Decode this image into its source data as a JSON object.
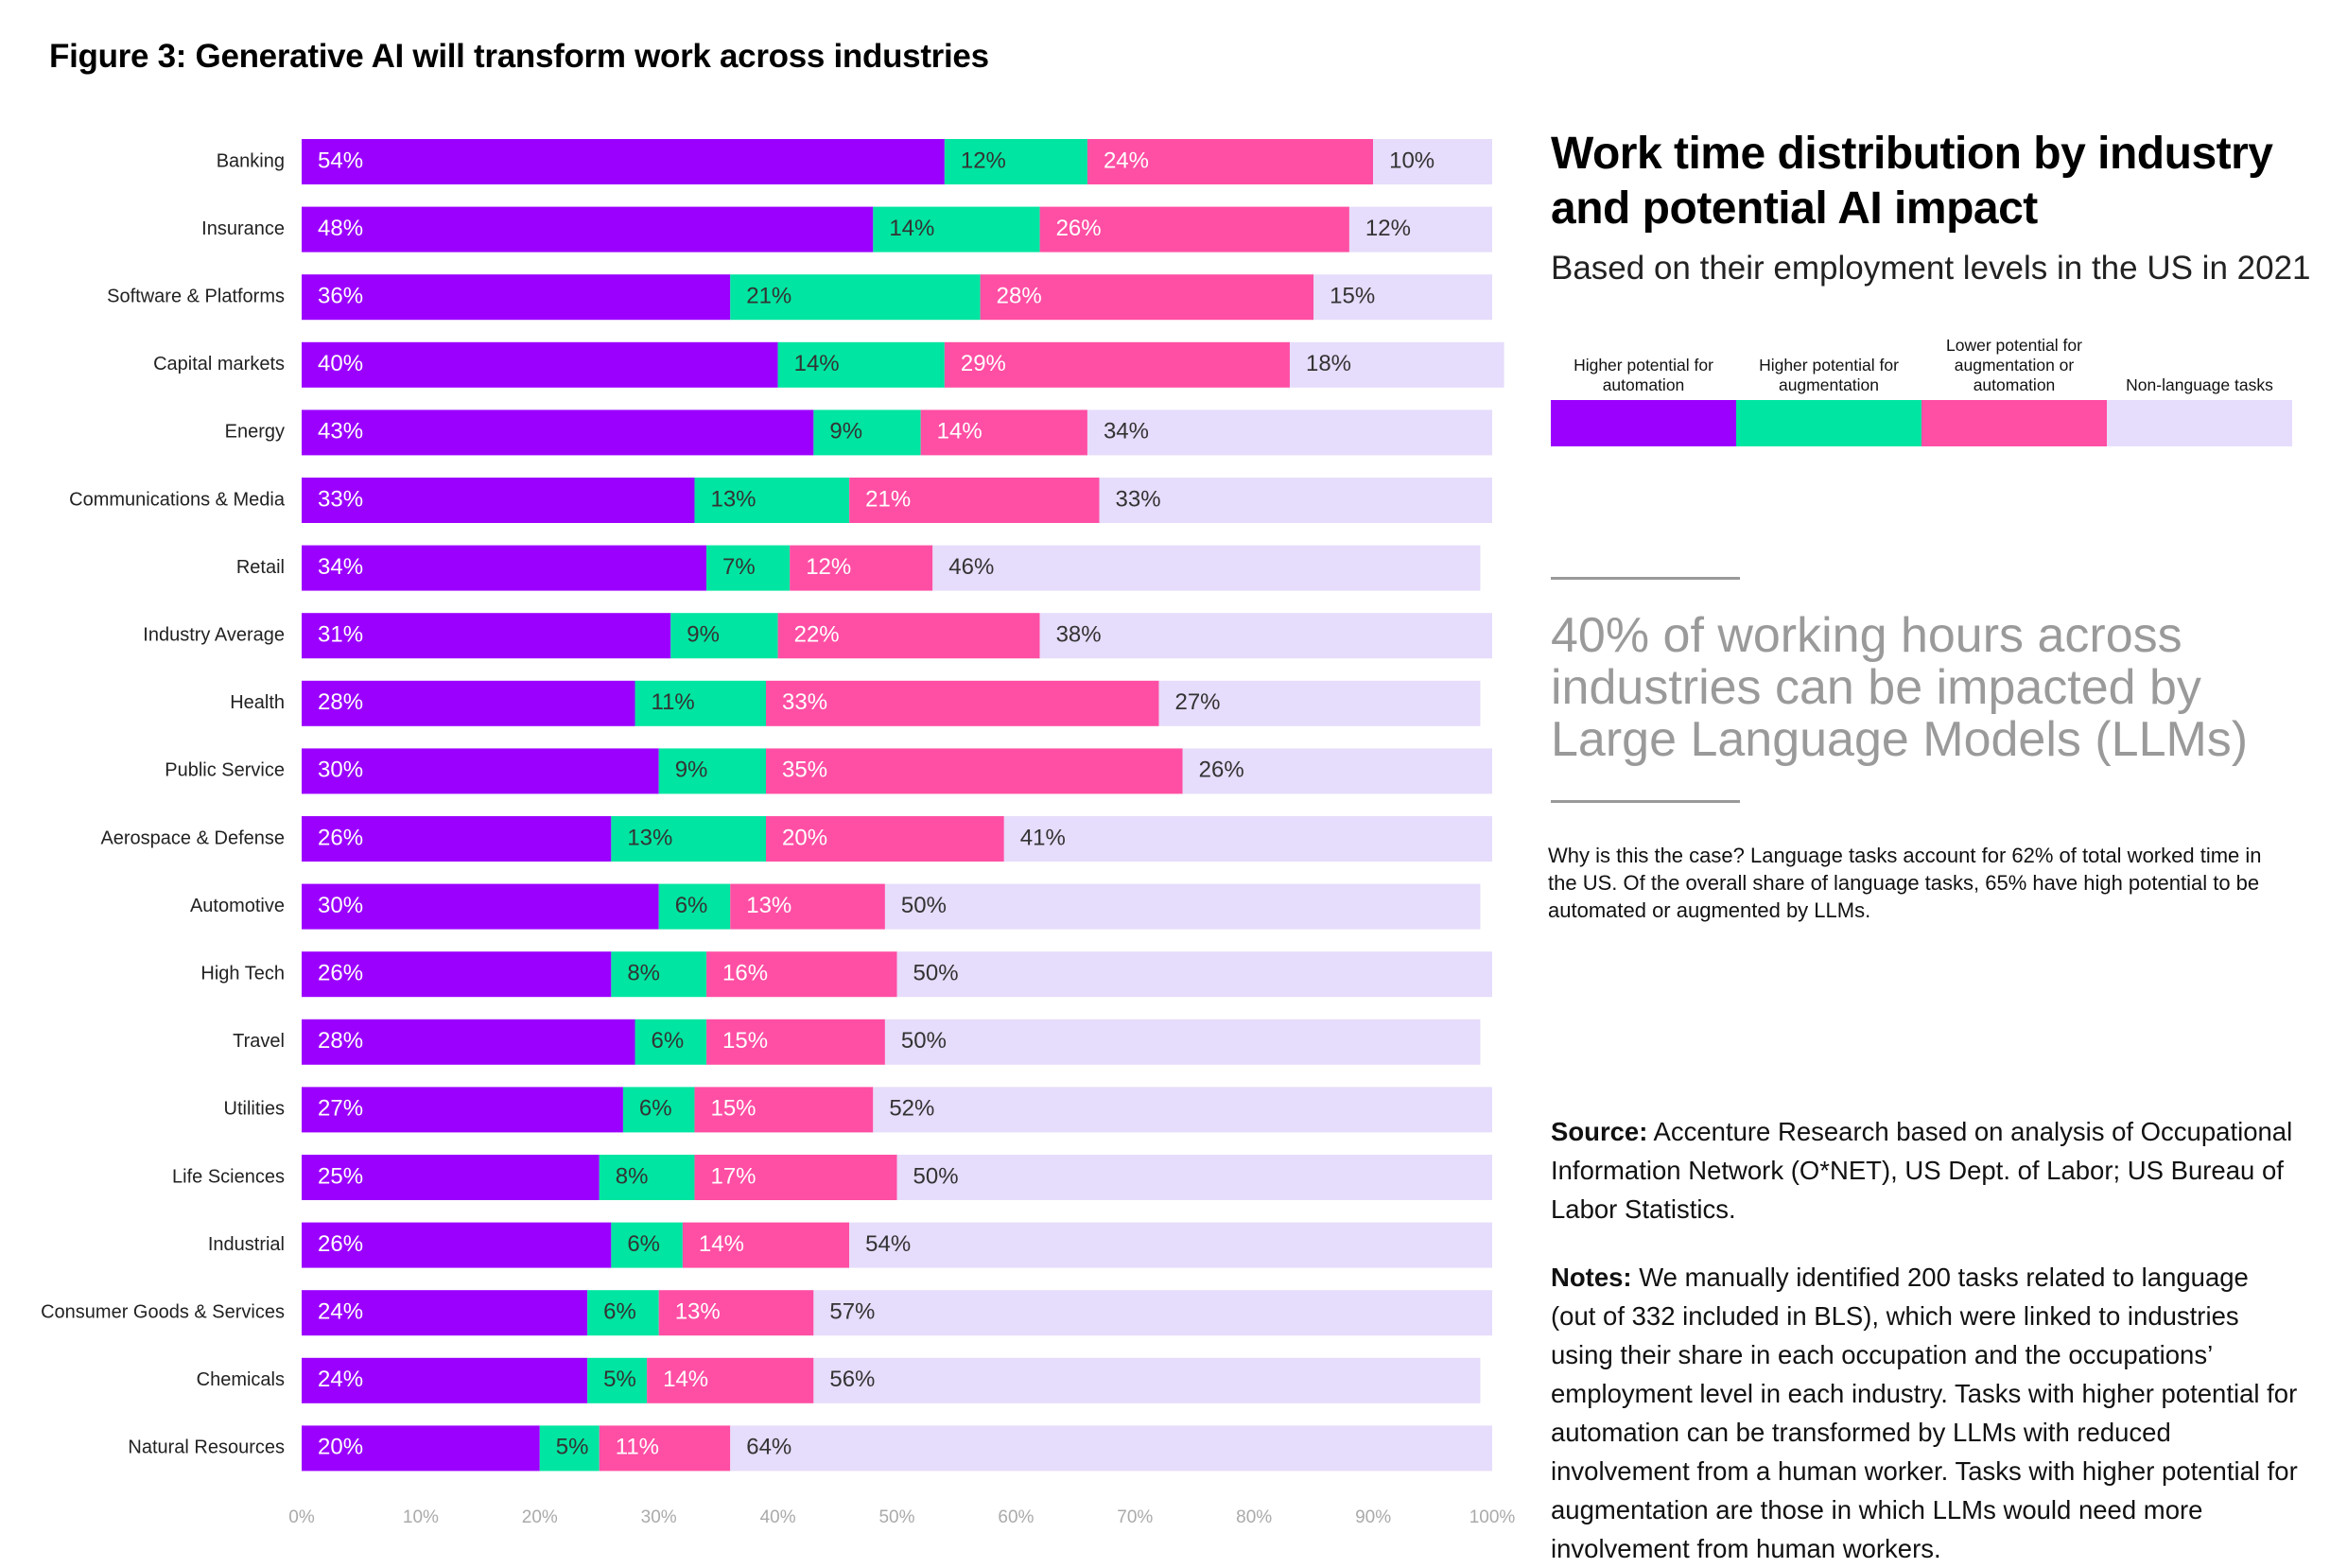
{
  "figure_title": "Figure 3: Generative AI will transform work across industries",
  "colors": {
    "automation": "#9b00ff",
    "augmentation": "#00e5a1",
    "lower": "#ff4fa4",
    "nonlanguage": "#e6dcfb"
  },
  "panel": {
    "title": "Work time distribution by industry and potential AI impact",
    "subtitle": "Based on their employment levels in the US in 2021",
    "legend": [
      {
        "label": "Higher potential for automation",
        "color": "#9b00ff"
      },
      {
        "label": "Higher potential for augmentation",
        "color": "#00e5a1"
      },
      {
        "label": "Lower potential for augmentation or automation",
        "color": "#ff4fa4"
      },
      {
        "label": "Non-language tasks",
        "color": "#e6dcfb"
      }
    ],
    "callout": "40% of working hours across industries can be impacted by Large Language Models (LLMs)",
    "why": "Why is this the case? Language tasks account for 62% of total worked time in the US. Of the overall share of language tasks, 65% have high potential to be automated or augmented by LLMs.",
    "source_label": "Source:",
    "source_text": " Accenture Research based on analysis of Occupational Information Network (O*NET), US Dept. of Labor; US Bureau of Labor Statistics.",
    "notes_label": "Notes:",
    "notes_text": " We manually identified 200 tasks related to language (out of 332 included in BLS), which were linked to industries using their share in each occupation and the occupations’ employment level in each industry. Tasks with higher potential for automation can be transformed by LLMs with reduced involvement from a human worker. Tasks with higher potential for augmentation are those in which LLMs would need more involvement from human workers."
  },
  "chart_data": {
    "type": "bar",
    "orientation": "horizontal",
    "stacked": true,
    "categories": [
      "Banking",
      "Insurance",
      "Software & Platforms",
      "Capital markets",
      "Energy",
      "Communications & Media",
      "Retail",
      "Industry Average",
      "Health",
      "Public Service",
      "Aerospace & Defense",
      "Automotive",
      "High Tech",
      "Travel",
      "Utilities",
      "Life Sciences",
      "Industrial",
      "Consumer Goods & Services",
      "Chemicals",
      "Natural Resources"
    ],
    "series": [
      {
        "name": "Higher potential for automation",
        "values": [
          54,
          48,
          36,
          40,
          43,
          33,
          34,
          31,
          28,
          30,
          26,
          30,
          26,
          28,
          27,
          25,
          26,
          24,
          24,
          20
        ]
      },
      {
        "name": "Higher potential for augmentation",
        "values": [
          12,
          14,
          21,
          14,
          9,
          13,
          7,
          9,
          11,
          9,
          13,
          6,
          8,
          6,
          6,
          8,
          6,
          6,
          5,
          5
        ]
      },
      {
        "name": "Lower potential for augmentation or automation",
        "values": [
          24,
          26,
          28,
          29,
          14,
          21,
          12,
          22,
          33,
          35,
          20,
          13,
          16,
          15,
          15,
          17,
          14,
          13,
          14,
          11
        ]
      },
      {
        "name": "Non-language tasks",
        "values": [
          10,
          12,
          15,
          18,
          34,
          33,
          46,
          38,
          27,
          26,
          41,
          50,
          50,
          50,
          52,
          50,
          54,
          57,
          56,
          64
        ]
      }
    ],
    "xlim": [
      0,
      100
    ],
    "xticks": [
      "0%",
      "10%",
      "20%",
      "30%",
      "40%",
      "50%",
      "60%",
      "70%",
      "80%",
      "90%",
      "100%"
    ],
    "value_suffix": "%"
  }
}
